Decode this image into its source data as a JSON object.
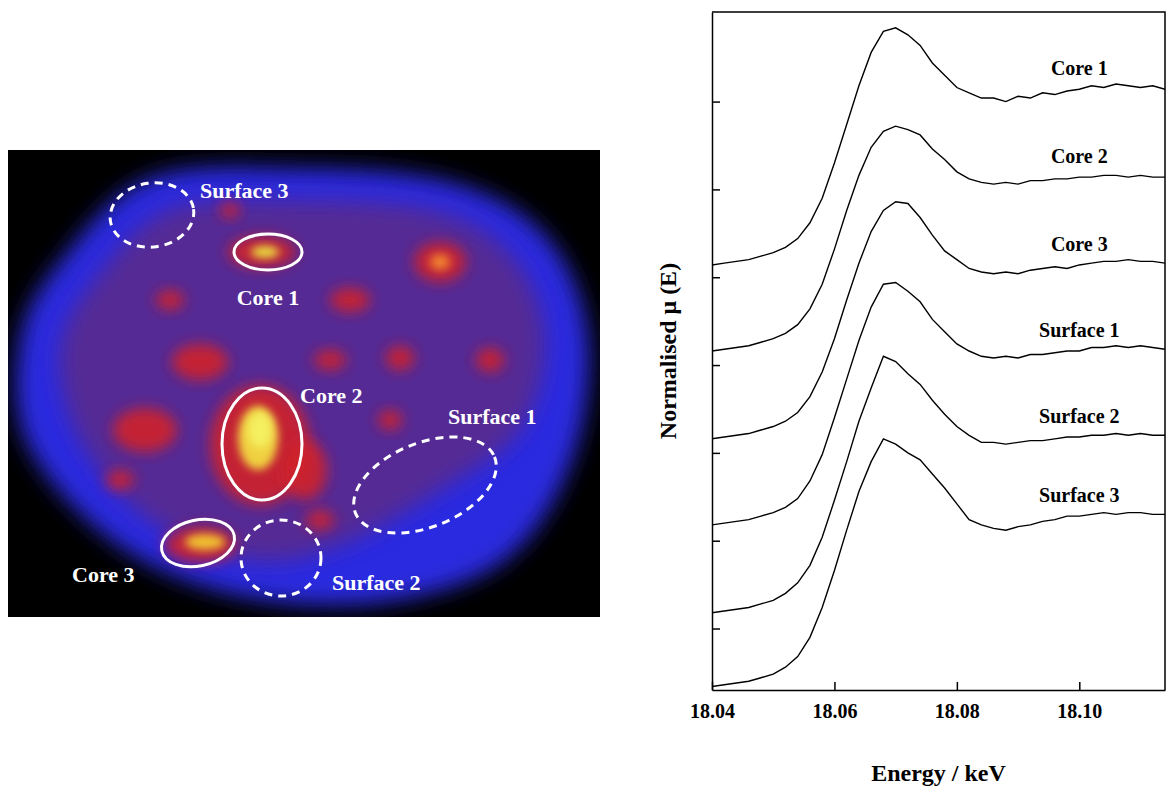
{
  "chart_data": [
    {
      "type": "map",
      "color": "#ffffff",
      "regions": [
        {
          "label": "Core 1",
          "line_style": "solid"
        },
        {
          "label": "Core 2",
          "line_style": "solid"
        },
        {
          "label": "Core 3",
          "line_style": "solid"
        },
        {
          "label": "Surface 1",
          "line_style": "dashed"
        },
        {
          "label": "Surface 2",
          "line_style": "dashed"
        },
        {
          "label": "Surface 3",
          "line_style": "dashed"
        }
      ]
    },
    {
      "type": "line",
      "color": "#000000",
      "x_label": "Energy / keV",
      "y_label": "Normalised μ (E)",
      "xlim": [
        18.04,
        18.114
      ],
      "ylim": [
        0.4,
        4.26
      ],
      "xticks": [
        18.04,
        18.06,
        18.08,
        {
          "value": 18.1,
          "label": "18.10"
        }
      ],
      "yticks": [
        0.75,
        1.25,
        1.75,
        2.25,
        2.75,
        3.25,
        3.75
      ],
      "tick_labels": "x",
      "x": [
        18.04,
        18.042,
        18.044,
        18.046,
        18.048,
        18.05,
        18.052,
        18.054,
        18.056,
        18.058,
        18.06,
        18.062,
        18.064,
        18.066,
        18.068,
        18.07,
        18.072,
        18.074,
        18.076,
        18.078,
        18.08,
        18.082,
        18.084,
        18.086,
        18.088,
        18.09,
        18.092,
        18.094,
        18.096,
        18.098,
        18.1,
        18.102,
        18.104,
        18.106,
        18.108,
        18.11,
        18.112,
        18.114
      ],
      "series": [
        {
          "name": "Core 1",
          "values": [
            2.82,
            2.83,
            2.84,
            2.85,
            2.87,
            2.89,
            2.92,
            2.97,
            3.06,
            3.2,
            3.4,
            3.62,
            3.84,
            4.03,
            4.15,
            4.17,
            4.13,
            4.07,
            3.97,
            3.9,
            3.83,
            3.8,
            3.77,
            3.77,
            3.75,
            3.78,
            3.77,
            3.8,
            3.79,
            3.81,
            3.82,
            3.84,
            3.83,
            3.85,
            3.84,
            3.83,
            3.84,
            3.82
          ]
        },
        {
          "name": "Core 2",
          "values": [
            2.33,
            2.34,
            2.35,
            2.36,
            2.38,
            2.4,
            2.43,
            2.48,
            2.57,
            2.71,
            2.91,
            3.13,
            3.33,
            3.49,
            3.58,
            3.61,
            3.59,
            3.56,
            3.48,
            3.42,
            3.35,
            3.31,
            3.29,
            3.28,
            3.29,
            3.28,
            3.3,
            3.3,
            3.31,
            3.31,
            3.32,
            3.32,
            3.33,
            3.33,
            3.32,
            3.33,
            3.32,
            3.32
          ]
        },
        {
          "name": "Core 3",
          "values": [
            1.83,
            1.84,
            1.85,
            1.86,
            1.88,
            1.9,
            1.93,
            1.98,
            2.07,
            2.21,
            2.4,
            2.62,
            2.83,
            3.01,
            3.13,
            3.18,
            3.17,
            3.09,
            2.99,
            2.9,
            2.85,
            2.8,
            2.78,
            2.77,
            2.78,
            2.77,
            2.79,
            2.8,
            2.81,
            2.8,
            2.82,
            2.83,
            2.84,
            2.84,
            2.85,
            2.84,
            2.84,
            2.83
          ]
        },
        {
          "name": "Surface 1",
          "values": [
            1.34,
            1.35,
            1.36,
            1.37,
            1.39,
            1.41,
            1.44,
            1.49,
            1.59,
            1.74,
            1.95,
            2.17,
            2.39,
            2.58,
            2.71,
            2.72,
            2.67,
            2.61,
            2.51,
            2.44,
            2.37,
            2.33,
            2.3,
            2.29,
            2.3,
            2.29,
            2.31,
            2.31,
            2.32,
            2.33,
            2.33,
            2.35,
            2.35,
            2.36,
            2.35,
            2.36,
            2.35,
            2.34
          ]
        },
        {
          "name": "Surface 2",
          "values": [
            0.84,
            0.85,
            0.86,
            0.87,
            0.89,
            0.91,
            0.95,
            1.01,
            1.11,
            1.27,
            1.48,
            1.7,
            1.93,
            2.12,
            2.3,
            2.27,
            2.2,
            2.14,
            2.05,
            1.97,
            1.9,
            1.85,
            1.81,
            1.81,
            1.8,
            1.81,
            1.82,
            1.82,
            1.83,
            1.84,
            1.84,
            1.85,
            1.85,
            1.86,
            1.85,
            1.86,
            1.85,
            1.85
          ]
        },
        {
          "name": "Surface 3",
          "values": [
            0.42,
            0.43,
            0.44,
            0.45,
            0.47,
            0.49,
            0.53,
            0.59,
            0.7,
            0.87,
            1.08,
            1.31,
            1.53,
            1.7,
            1.83,
            1.8,
            1.75,
            1.71,
            1.63,
            1.55,
            1.46,
            1.37,
            1.34,
            1.32,
            1.31,
            1.33,
            1.34,
            1.36,
            1.37,
            1.39,
            1.39,
            1.4,
            1.41,
            1.4,
            1.41,
            1.41,
            1.4,
            1.4
          ]
        }
      ]
    }
  ]
}
